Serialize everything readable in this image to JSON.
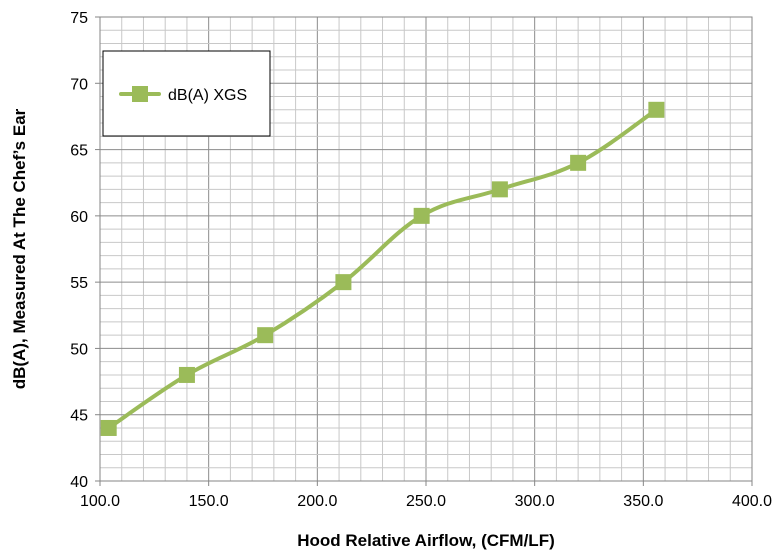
{
  "chart_data": {
    "type": "line",
    "title": "",
    "xlabel": "Hood Relative Airflow, (CFM/LF)",
    "ylabel": "dB(A), Measured At The Chef’s Ear",
    "xlim": [
      100,
      400
    ],
    "ylim": [
      40,
      75
    ],
    "x_major_step": 50,
    "y_major_step": 5,
    "x_minor_step": 10,
    "y_minor_step": 1,
    "x_tick_labels": [
      "100.0",
      "150.0",
      "200.0",
      "250.0",
      "300.0",
      "350.0",
      "400.0"
    ],
    "y_tick_labels": [
      "40",
      "45",
      "50",
      "55",
      "60",
      "65",
      "70",
      "75"
    ],
    "grid": true,
    "legend_position": "top-left",
    "series": [
      {
        "name": "dB(A) XGS",
        "color": "#9bbb59",
        "marker": "square",
        "x": [
          104,
          140,
          176,
          212,
          248,
          284,
          320,
          356
        ],
        "y": [
          44,
          48,
          51,
          55,
          60,
          62,
          64,
          68
        ]
      }
    ]
  }
}
